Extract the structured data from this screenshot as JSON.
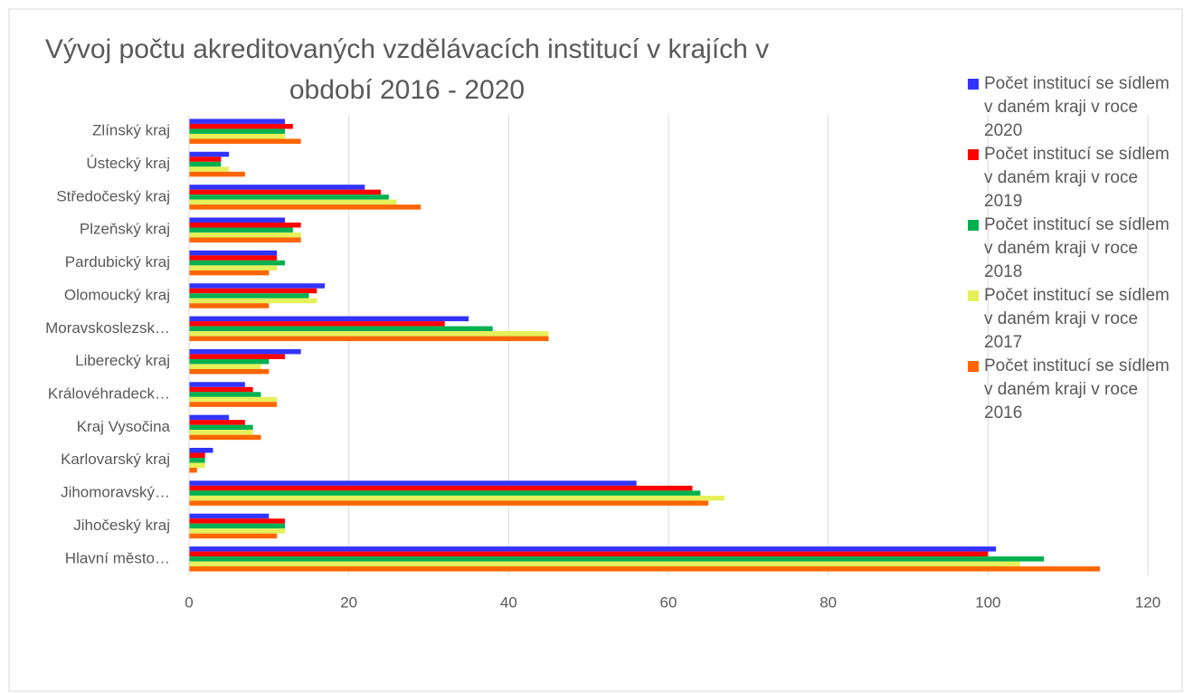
{
  "chart_data": {
    "type": "hbar",
    "title": "Vývoj počtu akreditovaných vzdělávacích institucí v krajích v období 2016 - 2020",
    "categories": [
      "Zlínský kraj",
      "Ústecký kraj",
      "Středočeský kraj",
      "Plzeňský kraj",
      "Pardubický kraj",
      "Olomoucký kraj",
      "Moravskoslezsk…",
      "Liberecký kraj",
      "Královéhradeck…",
      "Kraj Vysočina",
      "Karlovarský kraj",
      "Jihomoravský…",
      "Jihočeský kraj",
      "Hlavní město…"
    ],
    "series": [
      {
        "name": "Počet institucí se sídlem v daném kraji v roce 2020",
        "color": "#3333ff",
        "values": [
          12,
          5,
          22,
          12,
          11,
          17,
          35,
          14,
          7,
          5,
          3,
          56,
          10,
          101
        ]
      },
      {
        "name": "Počet institucí se sídlem v daném kraji v roce 2019",
        "color": "#ff0000",
        "values": [
          13,
          4,
          24,
          14,
          11,
          16,
          32,
          12,
          8,
          7,
          2,
          63,
          12,
          100
        ]
      },
      {
        "name": "Počet institucí se sídlem v daném kraji v roce 2018",
        "color": "#00b050",
        "values": [
          12,
          4,
          25,
          13,
          12,
          15,
          38,
          10,
          9,
          8,
          2,
          64,
          12,
          107
        ]
      },
      {
        "name": "Počet institucí se sídlem v daném kraji v roce 2017",
        "color": "#e6f05a",
        "values": [
          12,
          5,
          26,
          14,
          11,
          16,
          45,
          9,
          11,
          8,
          2,
          67,
          12,
          104
        ]
      },
      {
        "name": "Počet institucí se sídlem v daném kraji v roce 2016",
        "color": "#ff6600",
        "values": [
          14,
          7,
          29,
          14,
          10,
          10,
          45,
          10,
          11,
          9,
          1,
          65,
          11,
          114
        ]
      }
    ],
    "xlim": [
      0,
      120
    ],
    "xticks": [
      0,
      20,
      40,
      60,
      80,
      100,
      120
    ],
    "grid": true,
    "legend": "right"
  }
}
